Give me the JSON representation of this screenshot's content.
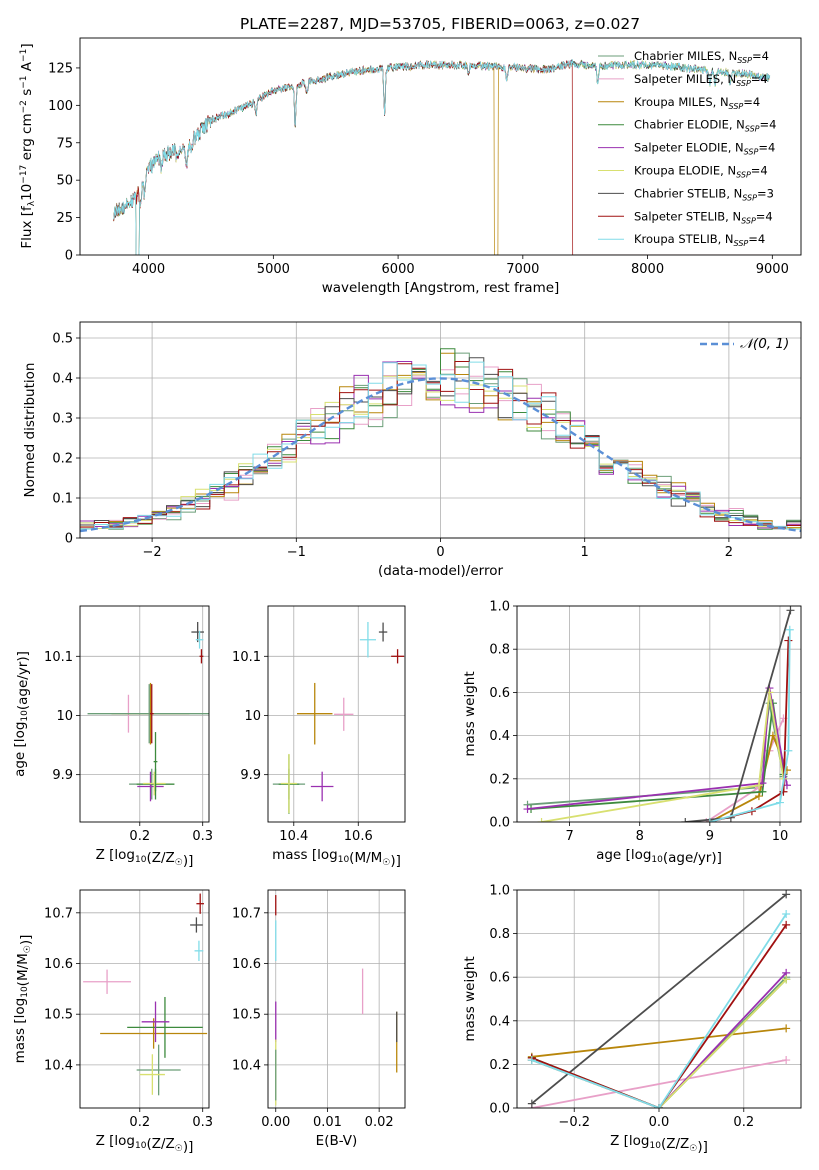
{
  "figure": {
    "title": "PLATE=2287, MJD=53705, FIBERID=0063, z=0.027"
  },
  "legend_labels": [
    {
      "name": "Chabrier MILES, N",
      "sub": "SSP",
      "tail": "=4",
      "color": "#6b9e78"
    },
    {
      "name": "Salpeter MILES, N",
      "sub": "SSP",
      "tail": "=4",
      "color": "#e8a0c8"
    },
    {
      "name": "Kroupa MILES, N",
      "sub": "SSP",
      "tail": "=4",
      "color": "#b8860b"
    },
    {
      "name": "Chabrier ELODIE, N",
      "sub": "SSP",
      "tail": "=4",
      "color": "#3d8a3d"
    },
    {
      "name": "Salpeter ELODIE, N",
      "sub": "SSP",
      "tail": "=4",
      "color": "#9a30b0"
    },
    {
      "name": "Kroupa ELODIE, N",
      "sub": "SSP",
      "tail": "=4",
      "color": "#d8e070"
    },
    {
      "name": "Chabrier STELIB, N",
      "sub": "SSP",
      "tail": "=3",
      "color": "#4d4d4d"
    },
    {
      "name": "Salpeter STELIB, N",
      "sub": "SSP",
      "tail": "=4",
      "color": "#a01010"
    },
    {
      "name": "Kroupa STELIB, N",
      "sub": "SSP",
      "tail": "=4",
      "color": "#80dce8"
    }
  ],
  "chart_data": [
    {
      "type": "line",
      "id": "spectrum",
      "xlabel": "wavelength [Angstrom, rest frame]",
      "ylabel_parts": [
        "Flux [f",
        "λ",
        "10",
        "−17",
        " erg cm",
        "−2",
        " s",
        "−1",
        " A",
        "−1",
        "]"
      ],
      "xlim": [
        3450,
        9230
      ],
      "ylim": [
        0,
        145
      ],
      "xticks": [
        4000,
        5000,
        6000,
        7000,
        8000,
        9000
      ],
      "yticks": [
        0,
        25,
        50,
        75,
        100,
        125
      ],
      "continuum_anchors": [
        [
          3720,
          28
        ],
        [
          3900,
          38
        ],
        [
          4000,
          58
        ],
        [
          4100,
          66
        ],
        [
          4300,
          72
        ],
        [
          4500,
          90
        ],
        [
          4800,
          100
        ],
        [
          5000,
          110
        ],
        [
          5200,
          114
        ],
        [
          5400,
          118
        ],
        [
          5600,
          122
        ],
        [
          5900,
          125
        ],
        [
          6200,
          127
        ],
        [
          6500,
          127
        ],
        [
          6800,
          126
        ],
        [
          7000,
          125
        ],
        [
          7200,
          124
        ],
        [
          7400,
          128
        ],
        [
          7600,
          126
        ],
        [
          7800,
          127
        ],
        [
          8000,
          127
        ],
        [
          8200,
          126
        ],
        [
          8500,
          123
        ],
        [
          8800,
          121
        ],
        [
          8980,
          118
        ]
      ],
      "absorption_features": [
        [
          3934,
          14
        ],
        [
          3969,
          12
        ],
        [
          4102,
          8
        ],
        [
          4227,
          6
        ],
        [
          4305,
          14
        ],
        [
          4340,
          8
        ],
        [
          4861,
          10
        ],
        [
          5175,
          28
        ],
        [
          5270,
          8
        ],
        [
          5892,
          30
        ],
        [
          6563,
          6
        ],
        [
          6870,
          10
        ],
        [
          7600,
          12
        ],
        [
          8500,
          8
        ],
        [
          8542,
          10
        ],
        [
          8662,
          9
        ]
      ],
      "dropouts": [
        {
          "series": 2,
          "x": [
            3900,
            3925
          ]
        },
        {
          "series": 8,
          "x": [
            3900,
            3925
          ]
        },
        {
          "series": 6,
          "x": [
            3900,
            3925
          ]
        },
        {
          "series": 2,
          "x": [
            6770,
            6800
          ]
        },
        {
          "series": 7,
          "x": [
            7400,
            9000
          ]
        }
      ]
    },
    {
      "type": "step",
      "id": "residuals",
      "xlabel": "(data-model)/error",
      "ylabel": "Normed distribution",
      "xlim": [
        -2.5,
        2.5
      ],
      "ylim": [
        0,
        0.54
      ],
      "xticks": [
        -2,
        -1,
        0,
        1,
        2
      ],
      "xtick_labels": [
        "−2",
        "−1",
        "0",
        "1",
        "2"
      ],
      "yticks": [
        0.0,
        0.1,
        0.2,
        0.3,
        0.4,
        0.5
      ],
      "reference_label": "𝒩(0, 1)",
      "reference_color": "#5b8fd6",
      "bin_width": 0.1,
      "jitter_seed": 17
    },
    {
      "type": "scatter",
      "id": "age_vs_Z",
      "xlabel": "Z [log10(Z/Z☉)]",
      "ylabel": "age  [log10(age/yr)]",
      "xlim": [
        0.105,
        0.31
      ],
      "ylim": [
        9.82,
        10.185
      ],
      "xticks": [
        0.2,
        0.3
      ],
      "yticks": [
        9.9,
        10.0,
        10.1
      ],
      "points": [
        {
          "s": 0,
          "x": 0.219,
          "xe": 0.036,
          "y": 9.884,
          "ye": 0.026
        },
        {
          "s": 1,
          "x": 0.182,
          "xe": 0.005,
          "y": 10.003,
          "ye": 0.032
        },
        {
          "s": 2,
          "x": 0.217,
          "xe": 0.062,
          "y": 10.003,
          "ye": 0.052
        },
        {
          "s": 3,
          "x": 0.225,
          "xe": 0.03,
          "y": 9.884,
          "ye": 0.026
        },
        {
          "s": 4,
          "x": 0.217,
          "xe": 0.021,
          "y": 9.88,
          "ye": 0.025
        },
        {
          "s": 5,
          "x": 0.223,
          "xe": 0.018,
          "y": 9.885,
          "ye": 0.02
        },
        {
          "s": 6,
          "x": 0.292,
          "xe": 0.01,
          "y": 10.141,
          "ye": 0.017
        },
        {
          "s": 7,
          "x": 0.298,
          "xe": 0.003,
          "y": 10.1,
          "ye": 0.012
        },
        {
          "s": 8,
          "x": 0.295,
          "xe": 0.006,
          "y": 10.128,
          "ye": 0.015
        },
        {
          "s": 0,
          "x": 0.215,
          "xe": 0.098,
          "y": 10.003,
          "ye": 0.05
        },
        {
          "s": 3,
          "x": 0.225,
          "xe": 0.003,
          "y": 9.922,
          "ye": 0.05
        },
        {
          "s": 7,
          "x": 0.219,
          "xe": 0.003,
          "y": 10.003,
          "ye": 0.05
        }
      ]
    },
    {
      "type": "scatter",
      "id": "age_vs_mass",
      "xlabel": "mass [log10(M/M☉)]",
      "ylabel": "",
      "xlim": [
        10.32,
        10.745
      ],
      "ylim": [
        9.82,
        10.185
      ],
      "xticks": [
        10.4,
        10.6
      ],
      "yticks": [
        9.9,
        10.0,
        10.1
      ],
      "points": [
        {
          "s": 0,
          "x": 10.385,
          "xe": 0.05,
          "y": 9.884,
          "ye": 0.026
        },
        {
          "s": 1,
          "x": 10.555,
          "xe": 0.03,
          "y": 10.002,
          "ye": 0.028
        },
        {
          "s": 2,
          "x": 10.465,
          "xe": 0.055,
          "y": 10.003,
          "ye": 0.052
        },
        {
          "s": 3,
          "x": 10.385,
          "xe": 0.032,
          "y": 9.884,
          "ye": 0.05
        },
        {
          "s": 4,
          "x": 10.488,
          "xe": 0.035,
          "y": 9.88,
          "ye": 0.025
        },
        {
          "s": 5,
          "x": 10.385,
          "xe": 0.025,
          "y": 9.885,
          "ye": 0.05
        },
        {
          "s": 6,
          "x": 10.677,
          "xe": 0.013,
          "y": 10.141,
          "ye": 0.016
        },
        {
          "s": 7,
          "x": 10.722,
          "xe": 0.02,
          "y": 10.1,
          "ye": 0.012
        },
        {
          "s": 8,
          "x": 10.63,
          "xe": 0.025,
          "y": 10.128,
          "ye": 0.03
        }
      ]
    },
    {
      "type": "line",
      "id": "weight_vs_age",
      "xlabel": "age  [log10(age/yr)]",
      "ylabel": "mass weight",
      "xlim": [
        6.25,
        10.3
      ],
      "ylim": [
        0,
        1.0
      ],
      "xticks": [
        7,
        8,
        9,
        10
      ],
      "yticks": [
        0.0,
        0.2,
        0.4,
        0.6,
        0.8,
        1.0
      ],
      "series": [
        {
          "s": 0,
          "x": [
            6.4,
            9.7,
            9.85,
            10.05
          ],
          "y": [
            0.08,
            0.16,
            0.55,
            0.21
          ]
        },
        {
          "s": 1,
          "x": [
            8.95,
            9.7,
            9.85,
            10.05
          ],
          "y": [
            0.0,
            0.16,
            0.33,
            0.48
          ]
        },
        {
          "s": 2,
          "x": [
            9.0,
            9.7,
            9.9,
            10.1
          ],
          "y": [
            0.0,
            0.12,
            0.4,
            0.24
          ]
        },
        {
          "s": 3,
          "x": [
            6.45,
            9.75,
            9.9,
            10.05
          ],
          "y": [
            0.06,
            0.14,
            0.55,
            0.22
          ]
        },
        {
          "s": 4,
          "x": [
            6.4,
            9.75,
            9.85,
            10.1
          ],
          "y": [
            0.06,
            0.18,
            0.62,
            0.17
          ]
        },
        {
          "s": 5,
          "x": [
            6.6,
            9.7,
            9.85,
            10.05
          ],
          "y": [
            0.0,
            0.17,
            0.6,
            0.2
          ]
        },
        {
          "s": 6,
          "x": [
            8.65,
            9.3,
            10.15
          ],
          "y": [
            0.0,
            0.02,
            0.98
          ]
        },
        {
          "s": 7,
          "x": [
            9.0,
            9.6,
            10.05,
            10.12
          ],
          "y": [
            0.0,
            0.05,
            0.14,
            0.84
          ]
        },
        {
          "s": 8,
          "x": [
            9.0,
            10.0,
            10.12,
            10.14
          ],
          "y": [
            0.0,
            0.09,
            0.33,
            0.89
          ]
        }
      ]
    },
    {
      "type": "scatter",
      "id": "mass_vs_Z",
      "xlabel": "Z [log10(Z/Z☉)]",
      "ylabel": "mass [log10(M/M☉)]",
      "xlim": [
        0.105,
        0.31
      ],
      "ylim": [
        10.315,
        10.745
      ],
      "xticks": [
        0.2,
        0.3
      ],
      "yticks": [
        10.4,
        10.5,
        10.6,
        10.7
      ],
      "points": [
        {
          "s": 0,
          "x": 0.23,
          "xe": 0.035,
          "y": 10.39,
          "ye": 0.05
        },
        {
          "s": 1,
          "x": 0.148,
          "xe": 0.038,
          "y": 10.564,
          "ye": 0.024
        },
        {
          "s": 2,
          "x": 0.222,
          "xe": 0.085,
          "y": 10.462,
          "ye": 0.03
        },
        {
          "s": 3,
          "x": 0.24,
          "xe": 0.06,
          "y": 10.474,
          "ye": 0.06
        },
        {
          "s": 4,
          "x": 0.225,
          "xe": 0.022,
          "y": 10.485,
          "ye": 0.04
        },
        {
          "s": 5,
          "x": 0.22,
          "xe": 0.02,
          "y": 10.381,
          "ye": 0.04
        },
        {
          "s": 6,
          "x": 0.29,
          "xe": 0.01,
          "y": 10.676,
          "ye": 0.015
        },
        {
          "s": 7,
          "x": 0.296,
          "xe": 0.006,
          "y": 10.718,
          "ye": 0.02
        },
        {
          "s": 8,
          "x": 0.294,
          "xe": 0.007,
          "y": 10.625,
          "ye": 0.02
        }
      ]
    },
    {
      "type": "scatter",
      "id": "mass_vs_ebv",
      "xlabel": "E(B-V)",
      "ylabel": "",
      "xlim": [
        -0.0015,
        0.025
      ],
      "ylim": [
        10.315,
        10.745
      ],
      "xticks": [
        0.0,
        0.01,
        0.02
      ],
      "xtick_labels": [
        "0.00",
        "0.01",
        "0.02"
      ],
      "yticks": [
        10.4,
        10.5,
        10.6,
        10.7
      ],
      "points": [
        {
          "s": 1,
          "x": 0.0168,
          "xe": 0,
          "y": 10.545,
          "ye": 0.045
        },
        {
          "s": 2,
          "x": 0.0234,
          "xe": 0,
          "y": 10.445,
          "ye": 0.06
        },
        {
          "s": 6,
          "x": 0.0234,
          "xe": 0,
          "y": 10.475,
          "ye": 0.03
        },
        {
          "s": 7,
          "x": 0.0,
          "xe": 0,
          "y": 10.715,
          "ye": 0.02
        },
        {
          "s": 8,
          "x": 0.0,
          "xe": 0,
          "y": 10.645,
          "ye": 0.04
        },
        {
          "s": 4,
          "x": 0.0,
          "xe": 0,
          "y": 10.485,
          "ye": 0.04
        },
        {
          "s": 5,
          "x": 0.0,
          "xe": 0,
          "y": 10.385,
          "ye": 0.065
        },
        {
          "s": 0,
          "x": 0.0,
          "xe": 0,
          "y": 10.38,
          "ye": 0.05
        }
      ]
    },
    {
      "type": "line",
      "id": "weight_vs_Z",
      "xlabel": "Z [log10(Z/Z☉)]",
      "ylabel": "mass weight",
      "xlim": [
        -0.335,
        0.335
      ],
      "ylim": [
        0,
        1.0
      ],
      "xticks": [
        -0.2,
        0.0,
        0.2
      ],
      "xtick_labels": [
        "−0.2",
        "0.0",
        "0.2"
      ],
      "yticks": [
        0.0,
        0.2,
        0.4,
        0.6,
        0.8,
        1.0
      ],
      "series": [
        {
          "s": 0,
          "x": [
            -0.3,
            0.0,
            0.3
          ],
          "y": [
            0.22,
            0.0,
            0.6
          ]
        },
        {
          "s": 1,
          "x": [
            -0.3,
            0.3
          ],
          "y": [
            0.0,
            0.22
          ]
        },
        {
          "s": 2,
          "x": [
            -0.3,
            0.3
          ],
          "y": [
            0.235,
            0.365
          ]
        },
        {
          "s": 3,
          "x": [
            -0.3,
            0.0,
            0.3
          ],
          "y": [
            0.23,
            0.0,
            0.59
          ]
        },
        {
          "s": 4,
          "x": [
            -0.3,
            0.0,
            0.3
          ],
          "y": [
            0.22,
            0.0,
            0.62
          ]
        },
        {
          "s": 5,
          "x": [
            -0.3,
            0.0,
            0.3
          ],
          "y": [
            0.22,
            0.0,
            0.59
          ]
        },
        {
          "s": 6,
          "x": [
            -0.3,
            0.3
          ],
          "y": [
            0.02,
            0.98
          ]
        },
        {
          "s": 7,
          "x": [
            -0.3,
            0.0,
            0.3
          ],
          "y": [
            0.23,
            0.0,
            0.84
          ]
        },
        {
          "s": 8,
          "x": [
            -0.3,
            0.0,
            0.3
          ],
          "y": [
            0.22,
            0.0,
            0.89
          ]
        }
      ]
    }
  ]
}
